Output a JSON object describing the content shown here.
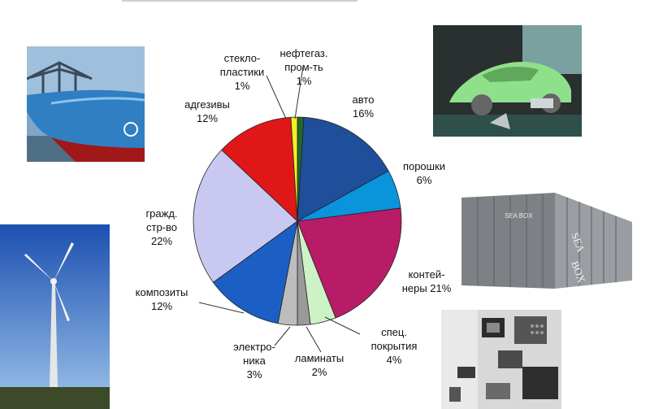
{
  "chart_data": {
    "type": "pie",
    "title": "",
    "slices": [
      {
        "label": [
          "нефтегаз.",
          "пром-ть"
        ],
        "pct": "1%",
        "value": 1,
        "color": "#1f6b2a"
      },
      {
        "label": [
          "авто"
        ],
        "pct": "16%",
        "value": 16,
        "color": "#1f4e9a"
      },
      {
        "label": [
          "порошки"
        ],
        "pct": "6%",
        "value": 6,
        "color": "#0a94dc"
      },
      {
        "label": [
          "контей-",
          "неры 21%"
        ],
        "pct": "",
        "value": 21,
        "color": "#b81c66"
      },
      {
        "label": [
          "спец.",
          "покрытия"
        ],
        "pct": "4%",
        "value": 4,
        "color": "#ccf2c6"
      },
      {
        "label": [
          "ламинаты"
        ],
        "pct": "2%",
        "value": 2,
        "color": "#9a9a9a"
      },
      {
        "label": [
          "электро-",
          "ника"
        ],
        "pct": "3%",
        "value": 3,
        "color": "#bdbdbd"
      },
      {
        "label": [
          "композиты"
        ],
        "pct": "12%",
        "value": 12,
        "color": "#1b5fc4"
      },
      {
        "label": [
          "гражд.",
          "стр-во"
        ],
        "pct": "22%",
        "value": 22,
        "color": "#c9c8f0"
      },
      {
        "label": [
          "адгезивы"
        ],
        "pct": "12%",
        "value": 12,
        "color": "#e01717"
      },
      {
        "label": [
          "стекло-",
          "пластики"
        ],
        "pct": "1%",
        "value": 1,
        "color": "#f5ef22"
      }
    ]
  },
  "photos": [
    {
      "name": "ship-bow-photo"
    },
    {
      "name": "car-model-photo"
    },
    {
      "name": "shipping-container-photo",
      "text": [
        "SEA BOX",
        "SEA",
        "BOX"
      ]
    },
    {
      "name": "wind-turbine-photo"
    },
    {
      "name": "microchips-photo"
    }
  ]
}
